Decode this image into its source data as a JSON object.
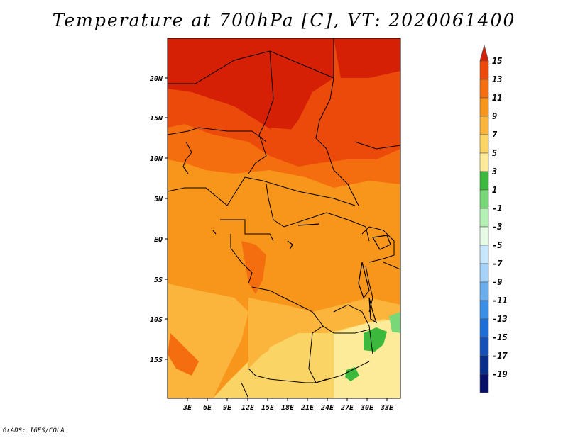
{
  "title": "Temperature at 700hPa [C], VT: 2020061400",
  "footer": "GrADS: IGES/COLA",
  "map": {
    "lat_labels": [
      "20N",
      "15N",
      "10N",
      "5N",
      "EQ",
      "5S",
      "10S",
      "15S"
    ],
    "lon_labels": [
      "3E",
      "6E",
      "9E",
      "12E",
      "15E",
      "18E",
      "21E",
      "24E",
      "27E",
      "30E",
      "33E"
    ]
  },
  "colorbar": {
    "labels": [
      "15",
      "13",
      "11",
      "9",
      "7",
      "5",
      "3",
      "1",
      "-1",
      "-3",
      "-5",
      "-7",
      "-9",
      "-11",
      "-13",
      "-15",
      "-17",
      "-19"
    ],
    "colors": [
      "#d62006",
      "#eb4a0a",
      "#f46d0e",
      "#f8961c",
      "#fbb43c",
      "#fbd466",
      "#fdeb9a",
      "#3cb83c",
      "#78d878",
      "#b4f0b4",
      "#e6fae6",
      "#c6e6fb",
      "#a6d2f7",
      "#6aaeee",
      "#3a8ee6",
      "#1e6ed8",
      "#1450b8",
      "#0a2e8c",
      "#081068",
      "#d8d8f4"
    ]
  }
}
